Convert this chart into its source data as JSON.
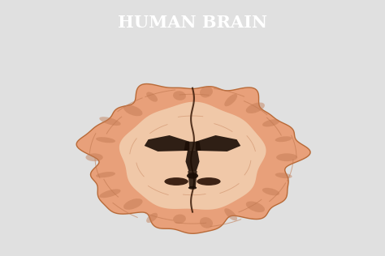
{
  "title": "HUMAN BRAIN",
  "title_color": "#ffffff",
  "title_fontsize": 15,
  "title_bg_color": "#2aab9b",
  "bg_color": "#e0e0e0",
  "brain_main_color": "#e8a07a",
  "brain_light_color": "#f2c8a8",
  "brain_sulci_color": "#c07850",
  "brain_inner_color": "#f0c8a8",
  "ventricle_color": "#1a0d05",
  "outline_color": "#b86a38",
  "midline_color": "#3a1a08",
  "dark_struct_color": "#2e1508"
}
